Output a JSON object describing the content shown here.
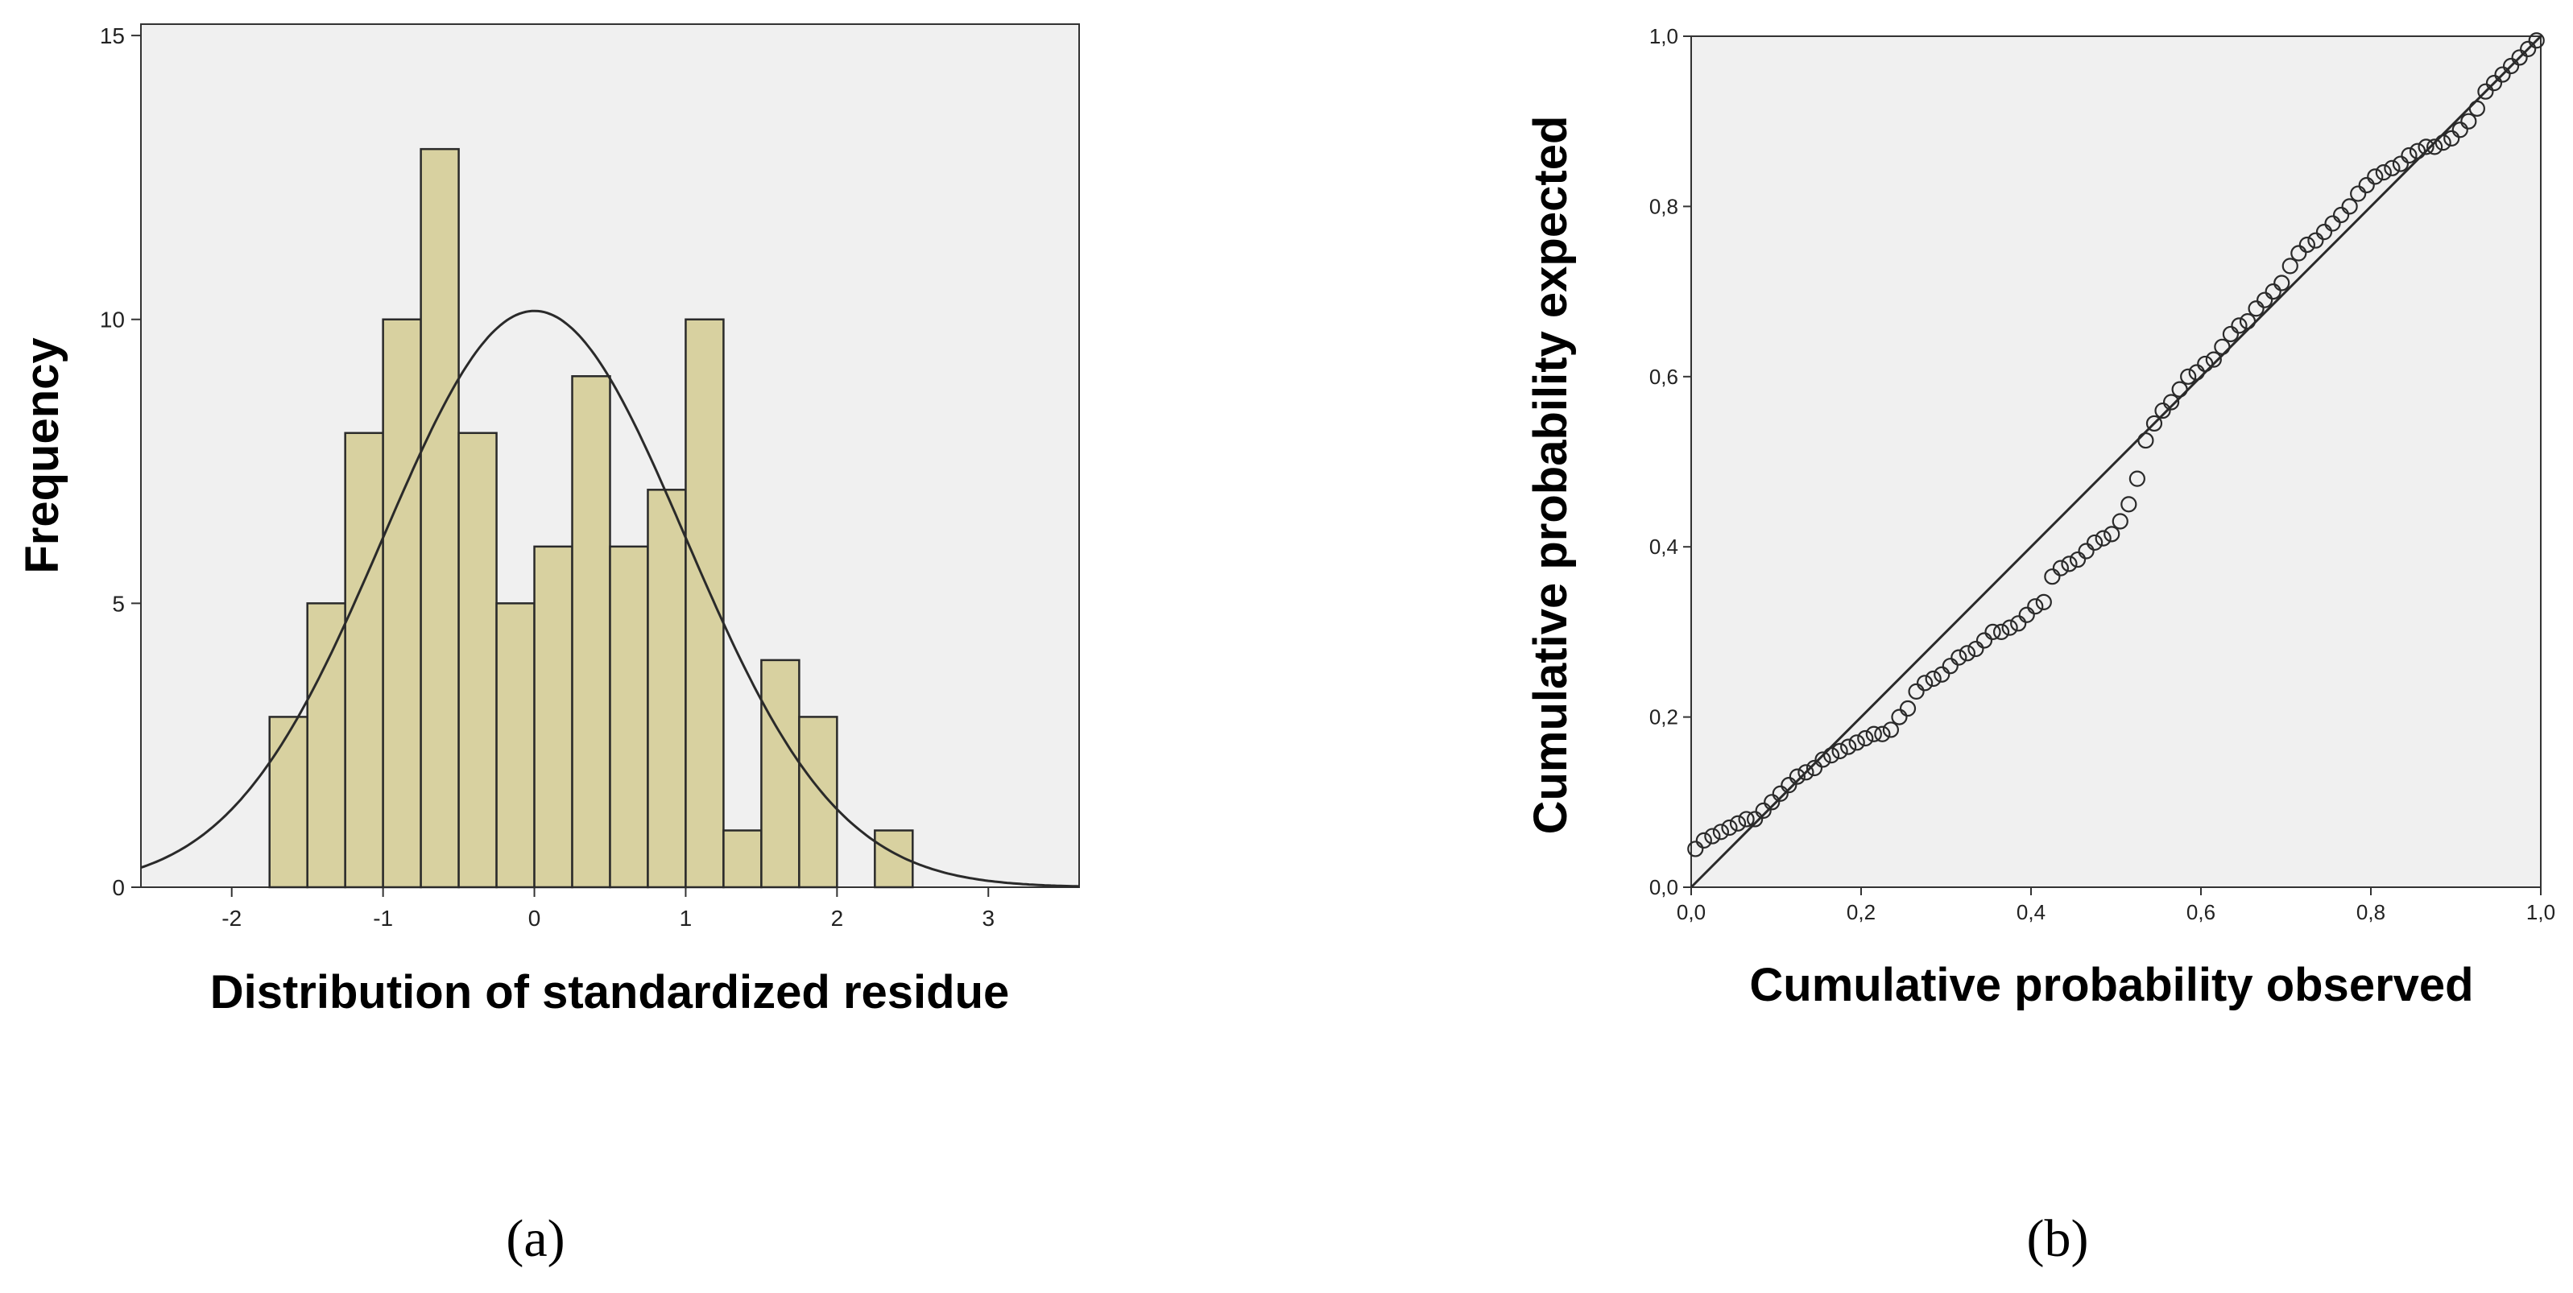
{
  "chart_data": [
    {
      "panel": "(a)",
      "type": "bar",
      "subtype": "histogram",
      "title": "",
      "xlabel": "Distribution of standardized residue",
      "ylabel": "Frequency",
      "xlim": [
        -2.6,
        3.6
      ],
      "ylim": [
        0,
        15.2
      ],
      "xticks": [
        -2,
        -1,
        0,
        1,
        2,
        3
      ],
      "xtick_labels": [
        "-2",
        "-1",
        "0",
        "1",
        "2",
        "3"
      ],
      "yticks": [
        0,
        5,
        10,
        15
      ],
      "ytick_labels": [
        "0",
        "5",
        "10",
        "15"
      ],
      "bin_width": 0.25,
      "bin_start": -1.75,
      "values": [
        3,
        5,
        8,
        10,
        13,
        8,
        5,
        6,
        9,
        6,
        7,
        10,
        1,
        4,
        3,
        0,
        1
      ],
      "normal_curve": {
        "mean": 0,
        "sd": 1,
        "peak": 10.15
      },
      "colors": {
        "bar": "#d8d1a0",
        "bar_edge": "#2a2a2a",
        "plot_bg": "#f0f0f0",
        "curve": "#2a2a2a"
      }
    },
    {
      "panel": "(b)",
      "type": "scatter",
      "subtype": "normal P-P plot",
      "title": "",
      "xlabel": "Cumulative probability observed",
      "ylabel": "Cumulative probability expected",
      "xlim": [
        0,
        1
      ],
      "ylim": [
        0,
        1
      ],
      "xticks": [
        0,
        0.2,
        0.4,
        0.6,
        0.8,
        1.0
      ],
      "xtick_labels": [
        "0,0",
        "0,2",
        "0,4",
        "0,6",
        "0,8",
        "1,0"
      ],
      "yticks": [
        0,
        0.2,
        0.4,
        0.6,
        0.8,
        1.0
      ],
      "ytick_labels": [
        "0,0",
        "0,2",
        "0,4",
        "0,6",
        "0,8",
        "1,0"
      ],
      "reference_line": [
        [
          0,
          0
        ],
        [
          1,
          1
        ]
      ],
      "points": {
        "x": [
          0.005,
          0.015,
          0.025,
          0.035,
          0.045,
          0.055,
          0.065,
          0.075,
          0.085,
          0.095,
          0.105,
          0.115,
          0.125,
          0.135,
          0.145,
          0.155,
          0.165,
          0.175,
          0.185,
          0.195,
          0.205,
          0.215,
          0.225,
          0.235,
          0.245,
          0.255,
          0.265,
          0.275,
          0.285,
          0.295,
          0.305,
          0.315,
          0.325,
          0.335,
          0.345,
          0.355,
          0.365,
          0.375,
          0.385,
          0.395,
          0.405,
          0.415,
          0.425,
          0.435,
          0.445,
          0.455,
          0.465,
          0.475,
          0.485,
          0.495,
          0.505,
          0.515,
          0.525,
          0.535,
          0.545,
          0.555,
          0.565,
          0.575,
          0.585,
          0.595,
          0.605,
          0.615,
          0.625,
          0.635,
          0.645,
          0.655,
          0.665,
          0.675,
          0.685,
          0.695,
          0.705,
          0.715,
          0.725,
          0.735,
          0.745,
          0.755,
          0.765,
          0.775,
          0.785,
          0.795,
          0.805,
          0.815,
          0.825,
          0.835,
          0.845,
          0.855,
          0.865,
          0.875,
          0.885,
          0.895,
          0.905,
          0.915,
          0.925,
          0.935,
          0.945,
          0.955,
          0.965,
          0.975,
          0.985,
          0.995
        ],
        "y": [
          0.045,
          0.055,
          0.06,
          0.065,
          0.07,
          0.075,
          0.08,
          0.08,
          0.09,
          0.1,
          0.11,
          0.12,
          0.13,
          0.135,
          0.14,
          0.15,
          0.155,
          0.16,
          0.165,
          0.17,
          0.175,
          0.18,
          0.18,
          0.185,
          0.2,
          0.21,
          0.23,
          0.24,
          0.245,
          0.25,
          0.26,
          0.27,
          0.275,
          0.28,
          0.29,
          0.3,
          0.3,
          0.305,
          0.31,
          0.32,
          0.33,
          0.335,
          0.365,
          0.375,
          0.38,
          0.385,
          0.395,
          0.405,
          0.41,
          0.415,
          0.43,
          0.45,
          0.48,
          0.525,
          0.545,
          0.56,
          0.57,
          0.585,
          0.6,
          0.605,
          0.615,
          0.62,
          0.635,
          0.65,
          0.66,
          0.665,
          0.68,
          0.69,
          0.7,
          0.71,
          0.73,
          0.745,
          0.755,
          0.76,
          0.77,
          0.78,
          0.79,
          0.8,
          0.815,
          0.825,
          0.835,
          0.84,
          0.845,
          0.85,
          0.86,
          0.865,
          0.87,
          0.87,
          0.875,
          0.88,
          0.89,
          0.9,
          0.915,
          0.935,
          0.945,
          0.955,
          0.965,
          0.975,
          0.985,
          0.995
        ]
      },
      "colors": {
        "plot_bg": "#f0f0f0",
        "marker_edge": "#2a2a2a",
        "line": "#2a2a2a"
      }
    }
  ]
}
